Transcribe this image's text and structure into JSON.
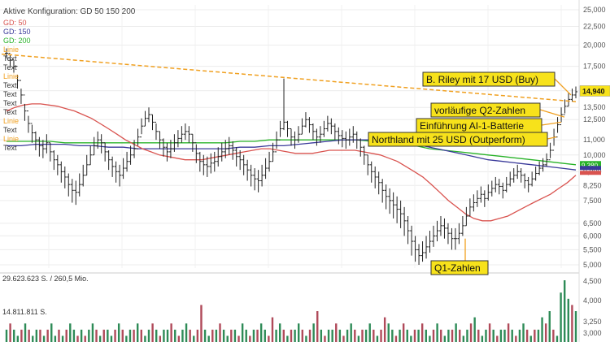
{
  "header": {
    "config_label": "Aktive Konfiguration: GD 50 150 200",
    "ma_labels": [
      {
        "text": "GD: 50",
        "color": "#d9534f"
      },
      {
        "text": "GD: 150",
        "color": "#3a3a9a"
      },
      {
        "text": "GD: 200",
        "color": "#28b228"
      }
    ],
    "drawing_labels": [
      "Linie",
      "Text",
      "Text",
      "Linie",
      "Text",
      "Text",
      "Text",
      "Text",
      "Linie",
      "Text",
      "Linie",
      "Text"
    ],
    "linie_color": "#f0a020",
    "text_color": "#333333"
  },
  "chart_data": {
    "type": "line",
    "y_axis_ticks": [
      "25,000",
      "22,500",
      "20,000",
      "17,500",
      "15,000",
      "13,500",
      "12,500",
      "11,000",
      "10,000",
      "9,000",
      "8,250",
      "7,500",
      "6,500",
      "6,000",
      "5,500",
      "5,000"
    ],
    "y_tick_values": [
      25000,
      22500,
      20000,
      17500,
      15000,
      13500,
      12500,
      11000,
      10000,
      9000,
      8250,
      7500,
      6500,
      6000,
      5500,
      5000
    ],
    "last_price_label": "14,940",
    "price_badges": [
      {
        "text": "9,380",
        "bg": "#28b228"
      },
      {
        "text": "",
        "bg": "#3a3a9a"
      },
      {
        "text": "",
        "bg": "#d9534f"
      }
    ],
    "price_close": [
      19.0,
      18.2,
      17.5,
      16.0,
      14.6,
      13.2,
      12.2,
      11.5,
      11.0,
      10.6,
      10.4,
      10.8,
      10.2,
      9.7,
      9.4,
      9.0,
      8.7,
      8.3,
      8.0,
      7.9,
      8.3,
      8.8,
      9.4,
      10.0,
      10.6,
      11.0,
      10.8,
      10.2,
      9.7,
      9.3,
      9.0,
      8.8,
      9.2,
      9.6,
      10.0,
      10.4,
      11.2,
      12.0,
      12.6,
      12.9,
      12.3,
      11.6,
      11.0,
      10.5,
      10.2,
      10.4,
      10.8,
      11.1,
      11.4,
      11.6,
      11.4,
      10.8,
      10.1,
      9.6,
      9.4,
      9.3,
      9.5,
      9.6,
      9.9,
      10.2,
      10.4,
      10.6,
      10.3,
      9.9,
      9.7,
      9.4,
      9.1,
      8.8,
      8.6,
      8.5,
      8.8,
      9.2,
      9.6,
      10.2,
      11.0,
      11.8,
      12.3,
      11.8,
      11.2,
      11.0,
      11.4,
      12.0,
      12.5,
      12.1,
      11.6,
      11.2,
      11.4,
      11.8,
      12.2,
      12.0,
      11.6,
      11.3,
      11.1,
      11.0,
      11.2,
      11.4,
      11.0,
      10.5,
      10.0,
      9.4,
      9.0,
      8.7,
      8.4,
      8.0,
      7.7,
      7.5,
      7.3,
      7.1,
      6.9,
      6.6,
      6.2,
      5.8,
      5.5,
      5.3,
      5.4,
      5.6,
      5.8,
      6.0,
      6.2,
      6.4,
      6.3,
      6.1,
      5.9,
      5.9,
      6.1,
      6.4,
      6.8,
      7.2,
      7.4,
      7.6,
      7.8,
      7.6,
      7.9,
      8.1,
      8.3,
      8.2,
      8.0,
      8.3,
      8.6,
      8.8,
      9.0,
      8.8,
      8.5,
      8.3,
      8.6,
      8.9,
      9.2,
      9.4,
      9.7,
      10.3,
      11.2,
      12.1,
      12.9,
      13.6,
      14.2,
      14.6,
      14.9
    ],
    "price_low": [
      18.4,
      17.4,
      16.8,
      15.2,
      13.8,
      12.4,
      11.5,
      10.8,
      10.3,
      9.9,
      9.8,
      10.1,
      9.6,
      9.1,
      8.8,
      8.4,
      8.1,
      7.7,
      7.4,
      7.3,
      7.7,
      8.2,
      8.8,
      9.4,
      10.0,
      10.4,
      10.1,
      9.6,
      9.1,
      8.7,
      8.4,
      8.2,
      8.6,
      9.0,
      9.4,
      9.8,
      10.6,
      11.4,
      12.0,
      12.3,
      11.7,
      11.0,
      10.4,
      9.9,
      9.6,
      9.8,
      10.2,
      10.5,
      10.8,
      11.0,
      10.8,
      10.2,
      9.5,
      9.0,
      8.8,
      8.7,
      8.9,
      9.0,
      9.3,
      9.6,
      9.8,
      10.0,
      9.7,
      9.3,
      9.1,
      8.8,
      8.5,
      8.2,
      8.0,
      7.9,
      8.2,
      8.6,
      9.0,
      9.6,
      10.4,
      11.2,
      11.7,
      11.2,
      10.6,
      10.4,
      10.8,
      11.4,
      11.9,
      11.5,
      11.0,
      10.6,
      10.8,
      11.2,
      11.6,
      11.4,
      11.0,
      10.7,
      10.5,
      10.4,
      10.6,
      10.8,
      10.4,
      9.9,
      9.4,
      8.8,
      8.4,
      8.1,
      7.8,
      7.4,
      7.1,
      6.9,
      6.7,
      6.5,
      6.3,
      6.0,
      5.7,
      5.3,
      5.1,
      5.0,
      5.1,
      5.2,
      5.4,
      5.6,
      5.8,
      6.0,
      5.9,
      5.7,
      5.5,
      5.5,
      5.7,
      6.0,
      6.4,
      6.8,
      7.0,
      7.2,
      7.4,
      7.2,
      7.5,
      7.7,
      7.9,
      7.8,
      7.6,
      7.9,
      8.2,
      8.4,
      8.6,
      8.4,
      8.1,
      7.9,
      8.2,
      8.5,
      8.8,
      9.0,
      9.3,
      9.8,
      10.6,
      11.5,
      12.3,
      13.0,
      13.6,
      14.0,
      14.3
    ],
    "price_high": [
      19.6,
      18.8,
      18.1,
      16.6,
      15.2,
      13.8,
      12.8,
      12.1,
      11.6,
      11.2,
      11.0,
      11.4,
      10.8,
      10.3,
      10.0,
      9.6,
      9.3,
      8.9,
      8.6,
      8.5,
      8.9,
      9.4,
      10.0,
      10.6,
      11.2,
      11.6,
      11.4,
      10.8,
      10.3,
      9.9,
      9.6,
      9.4,
      9.8,
      10.2,
      10.6,
      11.0,
      11.8,
      12.6,
      13.2,
      13.5,
      12.9,
      12.2,
      11.6,
      11.1,
      10.8,
      11.0,
      11.4,
      11.7,
      12.0,
      12.2,
      12.0,
      11.4,
      10.7,
      10.2,
      10.0,
      9.9,
      10.1,
      10.2,
      10.5,
      10.8,
      11.0,
      11.2,
      10.9,
      10.5,
      10.3,
      10.0,
      9.7,
      9.4,
      9.2,
      9.1,
      9.4,
      9.8,
      10.2,
      10.8,
      11.6,
      12.4,
      16.2,
      12.4,
      11.8,
      11.6,
      12.0,
      12.6,
      13.1,
      12.7,
      12.2,
      11.8,
      12.0,
      12.4,
      12.8,
      12.6,
      12.2,
      11.9,
      11.7,
      11.6,
      11.8,
      12.0,
      11.6,
      11.1,
      10.6,
      10.0,
      9.6,
      9.3,
      9.0,
      8.6,
      8.3,
      8.1,
      7.9,
      7.7,
      7.5,
      7.2,
      6.8,
      6.4,
      6.0,
      5.7,
      5.8,
      6.0,
      6.2,
      6.4,
      6.6,
      6.8,
      6.7,
      6.5,
      6.3,
      6.3,
      6.5,
      6.8,
      7.2,
      7.6,
      7.8,
      8.0,
      8.2,
      8.0,
      8.3,
      8.5,
      8.7,
      8.6,
      8.4,
      8.7,
      9.0,
      9.2,
      9.4,
      9.2,
      8.9,
      8.7,
      9.0,
      9.3,
      9.6,
      9.8,
      10.1,
      10.8,
      11.8,
      12.7,
      13.5,
      14.2,
      14.8,
      15.2,
      15.4
    ],
    "ma50": [
      13.2,
      13.5,
      13.7,
      13.8,
      13.8,
      13.7,
      13.6,
      13.4,
      13.2,
      12.9,
      12.6,
      12.2,
      11.8,
      11.4,
      11.0,
      10.7,
      10.4,
      10.2,
      10.0,
      9.9,
      9.8,
      9.7,
      9.7,
      9.7,
      9.8,
      9.9,
      10.0,
      10.1,
      10.2,
      10.3,
      10.4,
      10.4,
      10.3,
      10.2,
      10.1,
      10.1,
      10.1,
      10.2,
      10.3,
      10.3,
      10.3,
      10.3,
      10.2,
      10.1,
      10.0,
      9.8,
      9.6,
      9.3,
      9.0,
      8.7,
      8.3,
      7.9,
      7.5,
      7.2,
      6.9,
      6.7,
      6.6,
      6.6,
      6.7,
      6.8,
      7.0,
      7.2,
      7.4,
      7.6,
      7.8,
      8.1,
      8.4,
      8.8
    ],
    "ma150": [
      10.6,
      10.6,
      10.7,
      10.7,
      10.7,
      10.6,
      10.6,
      10.5,
      10.5,
      10.4,
      10.4,
      10.4,
      10.4,
      10.4,
      10.4,
      10.4,
      10.5,
      10.5,
      10.6,
      10.6,
      10.7,
      10.8,
      10.9,
      11.0,
      11.0,
      11.0,
      11.0,
      10.9,
      10.7,
      10.5,
      10.3,
      10.1,
      9.9,
      9.7,
      9.6,
      9.5,
      9.4,
      9.3,
      9.2,
      9.1
    ],
    "ma200": [
      10.9,
      10.9,
      10.9,
      10.9,
      10.8,
      10.8,
      10.8,
      10.8,
      10.8,
      10.8,
      10.8,
      10.8,
      10.8,
      10.8,
      10.8,
      10.8,
      10.9,
      10.9,
      11.0,
      11.0,
      11.0,
      11.0,
      11.0,
      11.0,
      11.0,
      10.9,
      10.8,
      10.7,
      10.6,
      10.4,
      10.3,
      10.2,
      10.1,
      10.0,
      9.9,
      9.8,
      9.7,
      9.6,
      9.5,
      9.4
    ],
    "volume": [
      2,
      3,
      2,
      1,
      2,
      3,
      2,
      1,
      2,
      2,
      1,
      2,
      3,
      1,
      2,
      1,
      2,
      3,
      2,
      1,
      2,
      1,
      2,
      3,
      2,
      1,
      2,
      2,
      1,
      2,
      3,
      2,
      1,
      2,
      2,
      3,
      2,
      1,
      2,
      3,
      2,
      1,
      2,
      2,
      3,
      2,
      1,
      2,
      3,
      2,
      1,
      2,
      6,
      2,
      1,
      2,
      2,
      3,
      2,
      1,
      2,
      2,
      1,
      3,
      2,
      1,
      2,
      2,
      3,
      2,
      1,
      4,
      2,
      3,
      2,
      1,
      2,
      2,
      3,
      2,
      1,
      2,
      3,
      5,
      2,
      1,
      2,
      2,
      3,
      2,
      1,
      2,
      3,
      2,
      1,
      2,
      2,
      3,
      2,
      1,
      2,
      4,
      3,
      2,
      1,
      2,
      3,
      2,
      1,
      2,
      2,
      3,
      2,
      1,
      2,
      3,
      2,
      1,
      2,
      2,
      3,
      2,
      1,
      2,
      3,
      4,
      2,
      1,
      2,
      3,
      2,
      1,
      2,
      2,
      3,
      2,
      1,
      2,
      3,
      2,
      1,
      2,
      2,
      4,
      3,
      5,
      2,
      1,
      8,
      10,
      7,
      6,
      5
    ],
    "volume_up": [
      true,
      false,
      true,
      true,
      false,
      true,
      false,
      true,
      true,
      false,
      true,
      false,
      true,
      true,
      false,
      true,
      false,
      true,
      true,
      false,
      true,
      false,
      true,
      true,
      false,
      true,
      false,
      true,
      true,
      false,
      true,
      false,
      true,
      true,
      false,
      true,
      false,
      true,
      true,
      false,
      true,
      false,
      true,
      true,
      false,
      true,
      false,
      true,
      true,
      false,
      true,
      false,
      false,
      true,
      true,
      false,
      true,
      false,
      true,
      true,
      false,
      true,
      false,
      true,
      true,
      false,
      true,
      false,
      true,
      true,
      false,
      false,
      true,
      true,
      false,
      true,
      false,
      true,
      true,
      false,
      true,
      false,
      true,
      false,
      true,
      false,
      true,
      true,
      false,
      true,
      false,
      true,
      true,
      false,
      true,
      false,
      true,
      true,
      false,
      true,
      false,
      false,
      true,
      true,
      false,
      true,
      false,
      true,
      true,
      false,
      true,
      false,
      true,
      true,
      false,
      true,
      false,
      true,
      true,
      false,
      true,
      false,
      true,
      true,
      false,
      true,
      false,
      true,
      true,
      false,
      true,
      false,
      true,
      true,
      false,
      true,
      false,
      true,
      true,
      false,
      true,
      false,
      true,
      true,
      false,
      true,
      false,
      true,
      true,
      true,
      true,
      false,
      true
    ],
    "volume_labels": {
      "top": "29.623.623 S. / 260,5 Mio.",
      "mid": "14.811.811 S."
    },
    "volume_axis_ticks": [
      "4,500",
      "4,000",
      "3,250",
      "3,000"
    ],
    "annotations": [
      {
        "text": "B. Riley mit 17 USD (Buy)",
        "bg": "#f7e21b",
        "border": "#333333"
      },
      {
        "text": "vorläufige Q2-Zahlen",
        "bg": "#f7e21b",
        "border": "#333333"
      },
      {
        "text": "Einführung AI-1-Batterie",
        "bg": "#f7e21b",
        "border": "#333333"
      },
      {
        "text": "Northland mit 25 USD (Outperform)",
        "bg": "#f7e21b",
        "border": "#333333"
      },
      {
        "text": "Q1-Zahlen",
        "bg": "#f7e21b",
        "border": "#333333"
      }
    ],
    "trendline_color": "#f0a020",
    "candle_up_color": "#333333",
    "candle_down_color": "#333333",
    "volume_up_color": "#2e8b57",
    "volume_down_color": "#b04a5a",
    "grid": true
  }
}
